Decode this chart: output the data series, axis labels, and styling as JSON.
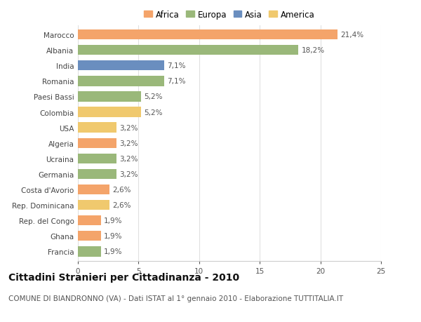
{
  "countries": [
    "Marocco",
    "Albania",
    "India",
    "Romania",
    "Paesi Bassi",
    "Colombia",
    "USA",
    "Algeria",
    "Ucraina",
    "Germania",
    "Costa d'Avorio",
    "Rep. Dominicana",
    "Rep. del Congo",
    "Ghana",
    "Francia"
  ],
  "values": [
    21.4,
    18.2,
    7.1,
    7.1,
    5.2,
    5.2,
    3.2,
    3.2,
    3.2,
    3.2,
    2.6,
    2.6,
    1.9,
    1.9,
    1.9
  ],
  "labels": [
    "21,4%",
    "18,2%",
    "7,1%",
    "7,1%",
    "5,2%",
    "5,2%",
    "3,2%",
    "3,2%",
    "3,2%",
    "3,2%",
    "2,6%",
    "2,6%",
    "1,9%",
    "1,9%",
    "1,9%"
  ],
  "continents": [
    "Africa",
    "Europa",
    "Asia",
    "Europa",
    "Europa",
    "America",
    "America",
    "Africa",
    "Europa",
    "Europa",
    "Africa",
    "America",
    "Africa",
    "Africa",
    "Europa"
  ],
  "colors": {
    "Africa": "#F4A46A",
    "Europa": "#9AB87A",
    "Asia": "#6A8EBF",
    "America": "#F0C96E"
  },
  "legend_order": [
    "Africa",
    "Europa",
    "Asia",
    "America"
  ],
  "legend_colors": [
    "#F4A46A",
    "#9AB87A",
    "#6A8EBF",
    "#F0C96E"
  ],
  "title": "Cittadini Stranieri per Cittadinanza - 2010",
  "subtitle": "COMUNE DI BIANDRONNO (VA) - Dati ISTAT al 1° gennaio 2010 - Elaborazione TUTTITALIA.IT",
  "xlim": [
    0,
    25
  ],
  "xticks": [
    0,
    5,
    10,
    15,
    20,
    25
  ],
  "background_color": "#ffffff",
  "bar_height": 0.65,
  "grid_color": "#e0e0e0",
  "label_fontsize": 7.5,
  "tick_fontsize": 7.5,
  "title_fontsize": 10,
  "subtitle_fontsize": 7.5
}
